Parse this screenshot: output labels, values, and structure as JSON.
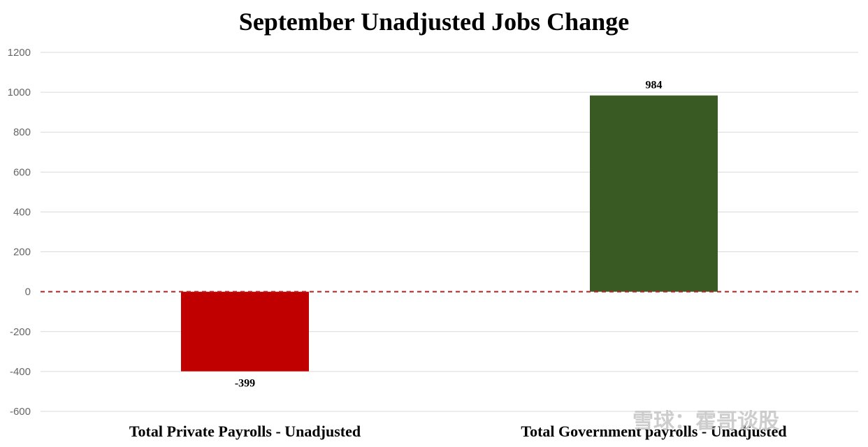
{
  "chart_data": {
    "type": "bar",
    "title": "September Unadjusted Jobs Change",
    "categories": [
      "Total Private Payrolls - Unadjusted",
      "Total Government payrolls - Unadjusted"
    ],
    "values": [
      -399,
      984
    ],
    "data_labels": [
      "-399",
      "984"
    ],
    "bar_colors": [
      "#c00000",
      "#3a5a24"
    ],
    "ylim": [
      -600,
      1200
    ],
    "yticks": [
      1200,
      1000,
      800,
      600,
      400,
      200,
      0,
      -200,
      -400,
      -600
    ],
    "grid": true,
    "zero_line": {
      "style": "dashed",
      "color": "#b22222"
    }
  },
  "watermark": {
    "text": "雪球：霍哥谈股"
  }
}
